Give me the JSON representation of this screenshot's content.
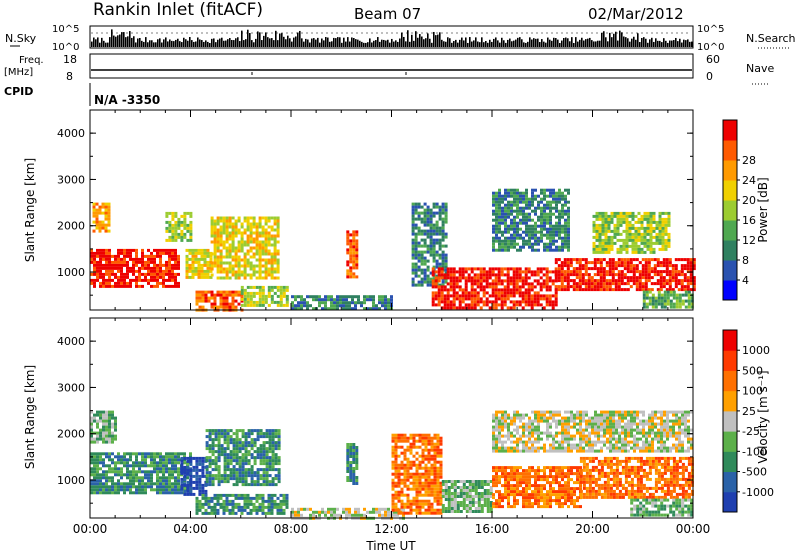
{
  "header": {
    "station": "Rankin Inlet (fitACF)",
    "beam": "Beam 07",
    "date": "02/Mar/2012"
  },
  "top_panels": {
    "nsky_label": "N.Sky",
    "nsky_ticks": [
      "10^5",
      "10^0"
    ],
    "nsearch_label": "N.Search",
    "nsearch_ticks": [
      "10^5",
      "10^0"
    ],
    "freq_label_1": "Freq.",
    "freq_label_2": "[MHz]",
    "freq_ticks": [
      "18",
      "8"
    ],
    "nave_label": "Nave",
    "nave_ticks": [
      "60",
      "0"
    ],
    "cpid_label": "CPID",
    "cpid_value": "N/A -3350"
  },
  "chart_data": [
    {
      "type": "heatmap",
      "title": "",
      "xlabel": "",
      "ylabel": "Slant Range [km]",
      "xlim": [
        0,
        24
      ],
      "ylim": [
        180,
        4500
      ],
      "x_ticks": [],
      "y_ticks": [
        "1000",
        "2000",
        "3000",
        "4000"
      ],
      "colorbar": {
        "label": "Power [dB]",
        "ticks": [
          "4",
          "8",
          "12",
          "16",
          "20",
          "24",
          "28"
        ],
        "colors": [
          "#0000ff",
          "#2a52b0",
          "#2f8060",
          "#4fa850",
          "#9ccc30",
          "#f0d000",
          "#ff9a00",
          "#ff5a00",
          "#ee0000"
        ]
      },
      "echo_regions": [
        {
          "t0": 0.0,
          "t1": 3.5,
          "r0": 700,
          "r1": 1500,
          "level": 8
        },
        {
          "t0": 0.1,
          "t1": 0.8,
          "r0": 1900,
          "r1": 2500,
          "level": 6
        },
        {
          "t0": 3.0,
          "t1": 4.0,
          "r0": 1700,
          "r1": 2300,
          "level": 4
        },
        {
          "t0": 3.8,
          "t1": 4.8,
          "r0": 900,
          "r1": 1500,
          "level": 5
        },
        {
          "t0": 4.8,
          "t1": 7.5,
          "r0": 900,
          "r1": 2200,
          "level": 5
        },
        {
          "t0": 4.2,
          "t1": 6.0,
          "r0": 200,
          "r1": 600,
          "level": 7
        },
        {
          "t0": 6.0,
          "t1": 7.8,
          "r0": 300,
          "r1": 700,
          "level": 4
        },
        {
          "t0": 10.2,
          "t1": 10.6,
          "r0": 900,
          "r1": 1900,
          "level": 7
        },
        {
          "t0": 8.0,
          "t1": 12.0,
          "r0": 200,
          "r1": 500,
          "level": 2
        },
        {
          "t0": 12.8,
          "t1": 14.2,
          "r0": 700,
          "r1": 2500,
          "level": 2
        },
        {
          "t0": 13.6,
          "t1": 18.5,
          "r0": 250,
          "r1": 1100,
          "level": 8
        },
        {
          "t0": 16.0,
          "t1": 19.0,
          "r0": 1500,
          "r1": 2800,
          "level": 2
        },
        {
          "t0": 18.5,
          "t1": 24.0,
          "r0": 600,
          "r1": 1300,
          "level": 8
        },
        {
          "t0": 20.0,
          "t1": 23.0,
          "r0": 1400,
          "r1": 2300,
          "level": 4
        },
        {
          "t0": 22.0,
          "t1": 24.0,
          "r0": 250,
          "r1": 600,
          "level": 3
        }
      ]
    },
    {
      "type": "heatmap",
      "title": "",
      "xlabel": "Time UT",
      "ylabel": "Slant Range [km]",
      "xlim": [
        0,
        24
      ],
      "ylim": [
        180,
        4500
      ],
      "x_ticks": [
        "00:00",
        "04:00",
        "08:00",
        "12:00",
        "16:00",
        "20:00",
        "00:00"
      ],
      "y_ticks": [
        "1000",
        "2000",
        "3000",
        "4000"
      ],
      "colorbar": {
        "label": "Velocity [m s⁻¹]",
        "ticks": [
          "1000",
          "500",
          "100",
          "25",
          "-25",
          "-100",
          "-500",
          "-1000"
        ],
        "colors": [
          "#1f3fb0",
          "#2a62a8",
          "#2f8a5a",
          "#5cb04a",
          "#c0c0c0",
          "#ffa000",
          "#ff7000",
          "#ff3a00",
          "#ee0000"
        ]
      },
      "echo_regions": [
        {
          "t0": 0.0,
          "t1": 4.0,
          "r0": 700,
          "r1": 1600,
          "level": 2
        },
        {
          "t0": 0.0,
          "t1": 1.0,
          "r0": 1800,
          "r1": 2500,
          "level": 3
        },
        {
          "t0": 3.6,
          "t1": 4.6,
          "r0": 700,
          "r1": 1500,
          "level": 0
        },
        {
          "t0": 4.6,
          "t1": 7.5,
          "r0": 900,
          "r1": 2100,
          "level": 2
        },
        {
          "t0": 4.2,
          "t1": 7.8,
          "r0": 250,
          "r1": 700,
          "level": 2
        },
        {
          "t0": 10.2,
          "t1": 10.6,
          "r0": 900,
          "r1": 1800,
          "level": 2
        },
        {
          "t0": 8.0,
          "t1": 12.5,
          "r0": 200,
          "r1": 400,
          "level": 4
        },
        {
          "t0": 12.0,
          "t1": 14.0,
          "r0": 300,
          "r1": 2000,
          "level": 6
        },
        {
          "t0": 14.0,
          "t1": 16.0,
          "r0": 300,
          "r1": 1000,
          "level": 3
        },
        {
          "t0": 16.0,
          "t1": 19.5,
          "r0": 400,
          "r1": 1300,
          "level": 6
        },
        {
          "t0": 16.0,
          "t1": 24.0,
          "r0": 1600,
          "r1": 2500,
          "level": 4
        },
        {
          "t0": 19.5,
          "t1": 24.0,
          "r0": 600,
          "r1": 1500,
          "level": 6
        },
        {
          "t0": 21.5,
          "t1": 24.0,
          "r0": 250,
          "r1": 600,
          "level": 3
        }
      ]
    }
  ]
}
